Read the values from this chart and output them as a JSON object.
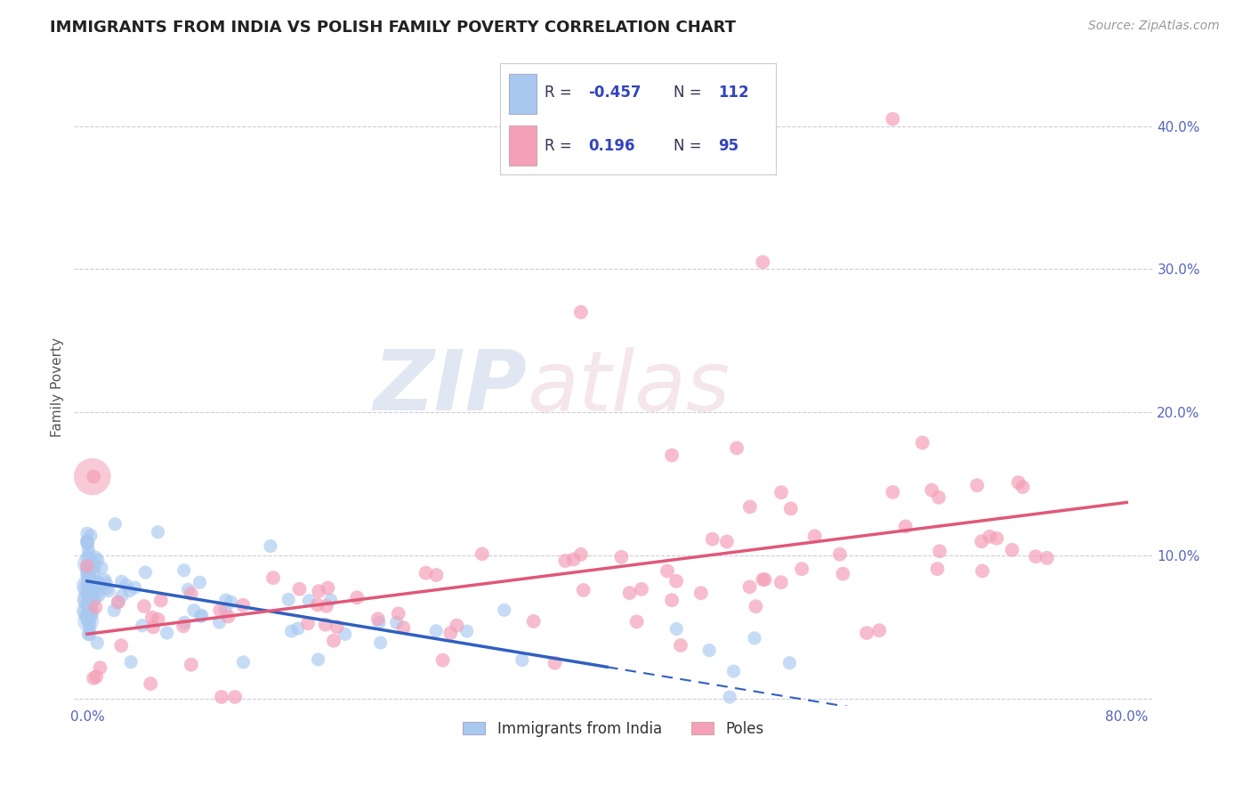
{
  "title": "IMMIGRANTS FROM INDIA VS POLISH FAMILY POVERTY CORRELATION CHART",
  "source": "Source: ZipAtlas.com",
  "ylabel": "Family Poverty",
  "india_R": -0.457,
  "india_N": 112,
  "poles_R": 0.196,
  "poles_N": 95,
  "india_color": "#A8C8F0",
  "poles_color": "#F4A0B8",
  "india_line_color": "#3060C0",
  "poles_line_color": "#E05878",
  "xlim": [
    -0.01,
    0.82
  ],
  "ylim": [
    -0.005,
    0.44
  ],
  "xticks": [
    0.0,
    0.8
  ],
  "yticks": [
    0.1,
    0.2,
    0.3,
    0.4
  ],
  "xtick_labels": [
    "0.0%",
    "80.0%"
  ],
  "ytick_labels": [
    "10.0%",
    "20.0%",
    "30.0%",
    "40.0%"
  ],
  "grid_yticks": [
    0.0,
    0.1,
    0.2,
    0.3,
    0.4
  ],
  "title_fontsize": 13,
  "source_fontsize": 10,
  "tick_fontsize": 11,
  "ylabel_fontsize": 11
}
